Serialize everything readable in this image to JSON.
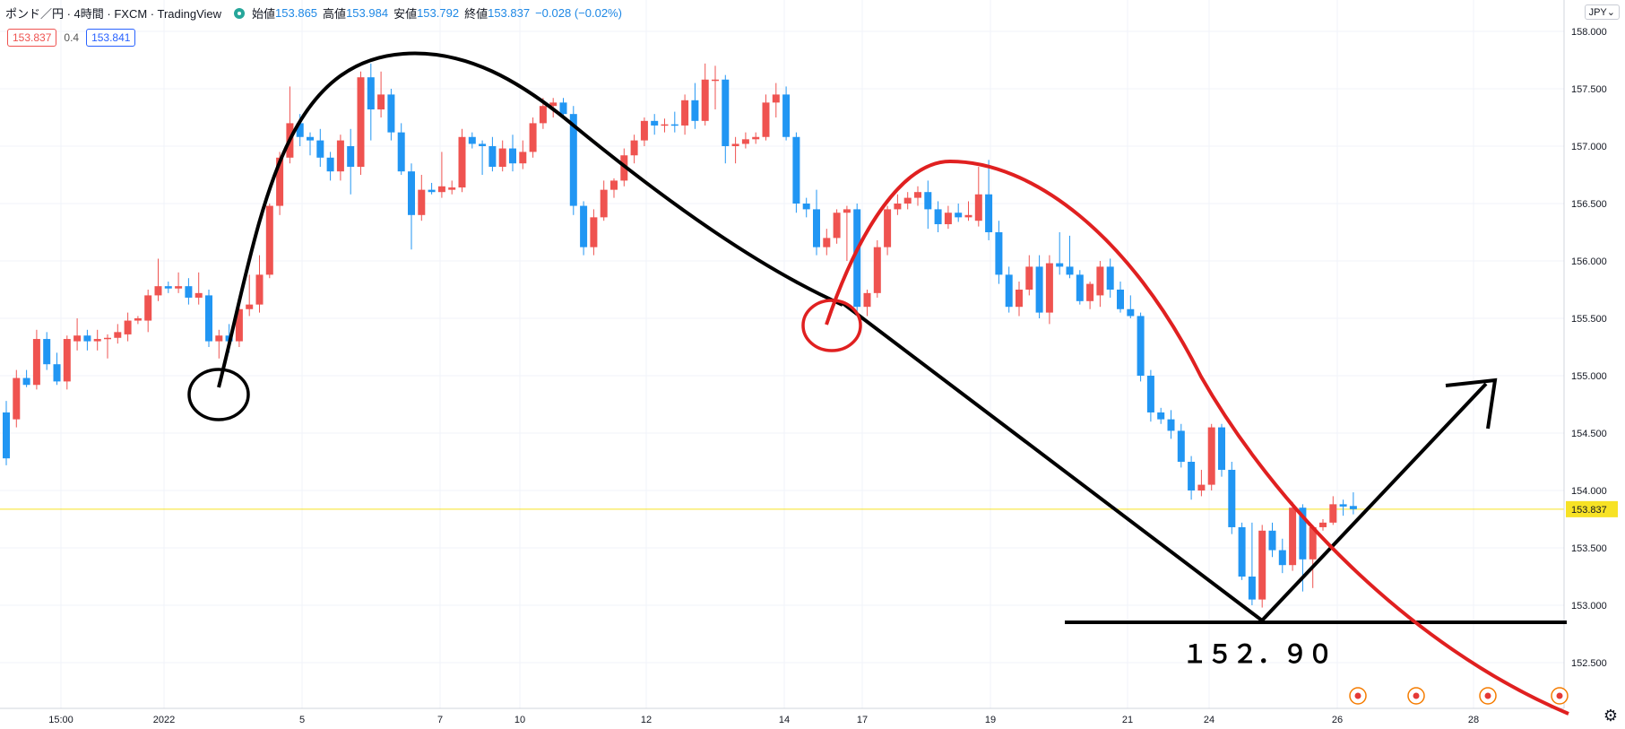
{
  "header": {
    "symbol": "ポンド／円 · 4時間 · FXCM · TradingView",
    "open_label": "始値",
    "open": "153.865",
    "high_label": "高値",
    "high": "153.984",
    "low_label": "安値",
    "low": "153.792",
    "close_label": "終値",
    "close": "153.837",
    "change": "−0.028 (−0.02%)"
  },
  "trade": {
    "sell": "153.837",
    "spread": "0.4",
    "buy": "153.841"
  },
  "currency_button": "JPY",
  "colors": {
    "up": "#ef5350",
    "down": "#2196f3",
    "last_price_bg": "#f7e225",
    "annotation_black": "#000000",
    "annotation_red": "#e02020"
  },
  "chart_data": {
    "type": "candlestick",
    "timeframe": "4時間",
    "y_axis": {
      "ticks": [
        "158.000",
        "157.500",
        "157.000",
        "156.500",
        "156.000",
        "155.500",
        "155.000",
        "154.500",
        "154.000",
        "153.500",
        "153.000",
        "152.500"
      ],
      "range": [
        152.2,
        158.1
      ]
    },
    "x_axis": {
      "ticks": [
        "15:00",
        "2022",
        "5",
        "7",
        "10",
        "12",
        "14",
        "17",
        "19",
        "21",
        "24",
        "26",
        "28"
      ]
    },
    "last_price": "153.837",
    "annotation_text": "１５２．９０",
    "candles": [
      [
        154.68,
        154.78,
        154.22,
        154.28
      ],
      [
        154.62,
        155.05,
        154.55,
        154.98
      ],
      [
        154.98,
        155.05,
        154.9,
        154.92
      ],
      [
        154.92,
        155.4,
        154.88,
        155.32
      ],
      [
        155.32,
        155.38,
        155.05,
        155.1
      ],
      [
        155.1,
        155.2,
        154.92,
        154.95
      ],
      [
        154.95,
        155.35,
        154.88,
        155.32
      ],
      [
        155.3,
        155.5,
        155.22,
        155.35
      ],
      [
        155.35,
        155.4,
        155.22,
        155.3
      ],
      [
        155.3,
        155.4,
        155.22,
        155.32
      ],
      [
        155.32,
        155.36,
        155.15,
        155.33
      ],
      [
        155.33,
        155.45,
        155.28,
        155.38
      ],
      [
        155.36,
        155.55,
        155.3,
        155.48
      ],
      [
        155.48,
        155.52,
        155.45,
        155.5
      ],
      [
        155.48,
        155.75,
        155.38,
        155.7
      ],
      [
        155.7,
        156.02,
        155.65,
        155.78
      ],
      [
        155.78,
        155.82,
        155.72,
        155.76
      ],
      [
        155.76,
        155.9,
        155.72,
        155.78
      ],
      [
        155.78,
        155.85,
        155.62,
        155.68
      ],
      [
        155.68,
        155.9,
        155.62,
        155.72
      ],
      [
        155.7,
        155.75,
        155.25,
        155.3
      ],
      [
        155.3,
        155.4,
        155.15,
        155.35
      ],
      [
        155.35,
        155.45,
        155.2,
        155.3
      ],
      [
        155.3,
        155.6,
        155.25,
        155.58
      ],
      [
        155.58,
        155.88,
        155.52,
        155.62
      ],
      [
        155.62,
        156.05,
        155.55,
        155.88
      ],
      [
        155.88,
        156.5,
        155.85,
        156.48
      ],
      [
        156.48,
        156.95,
        156.4,
        156.9
      ],
      [
        156.9,
        157.52,
        156.85,
        157.2
      ],
      [
        157.2,
        157.28,
        157.0,
        157.08
      ],
      [
        157.08,
        157.12,
        156.92,
        157.05
      ],
      [
        157.05,
        157.15,
        156.82,
        156.9
      ],
      [
        156.9,
        156.95,
        156.7,
        156.78
      ],
      [
        156.78,
        157.1,
        156.7,
        157.05
      ],
      [
        157.0,
        157.15,
        156.58,
        156.82
      ],
      [
        156.82,
        157.65,
        156.75,
        157.6
      ],
      [
        157.6,
        157.72,
        157.05,
        157.32
      ],
      [
        157.32,
        157.65,
        157.25,
        157.45
      ],
      [
        157.45,
        157.5,
        157.05,
        157.12
      ],
      [
        157.12,
        157.2,
        156.75,
        156.78
      ],
      [
        156.78,
        156.85,
        156.1,
        156.4
      ],
      [
        156.4,
        156.75,
        156.35,
        156.62
      ],
      [
        156.62,
        156.68,
        156.58,
        156.6
      ],
      [
        156.6,
        156.95,
        156.55,
        156.65
      ],
      [
        156.62,
        156.7,
        156.58,
        156.64
      ],
      [
        156.64,
        157.15,
        156.6,
        157.08
      ],
      [
        157.08,
        157.12,
        156.98,
        157.02
      ],
      [
        157.02,
        157.05,
        156.75,
        157.0
      ],
      [
        157.0,
        157.08,
        156.78,
        156.82
      ],
      [
        156.82,
        157.05,
        156.78,
        156.98
      ],
      [
        156.98,
        157.1,
        156.78,
        156.85
      ],
      [
        156.85,
        157.05,
        156.8,
        156.95
      ],
      [
        156.95,
        157.25,
        156.9,
        157.2
      ],
      [
        157.2,
        157.42,
        157.15,
        157.35
      ],
      [
        157.35,
        157.42,
        157.25,
        157.38
      ],
      [
        157.38,
        157.42,
        157.25,
        157.28
      ],
      [
        157.28,
        157.35,
        156.4,
        156.48
      ],
      [
        156.48,
        156.52,
        156.05,
        156.12
      ],
      [
        156.12,
        156.45,
        156.05,
        156.38
      ],
      [
        156.38,
        156.7,
        156.35,
        156.62
      ],
      [
        156.62,
        156.72,
        156.55,
        156.7
      ],
      [
        156.7,
        156.98,
        156.65,
        156.92
      ],
      [
        156.92,
        157.1,
        156.85,
        157.05
      ],
      [
        157.05,
        157.25,
        157.0,
        157.22
      ],
      [
        157.22,
        157.28,
        157.1,
        157.18
      ],
      [
        157.18,
        157.24,
        157.12,
        157.19
      ],
      [
        157.19,
        157.3,
        157.12,
        157.18
      ],
      [
        157.18,
        157.45,
        157.1,
        157.4
      ],
      [
        157.4,
        157.55,
        157.15,
        157.22
      ],
      [
        157.22,
        157.72,
        157.18,
        157.58
      ],
      [
        157.58,
        157.7,
        157.32,
        157.58
      ],
      [
        157.58,
        157.62,
        156.85,
        157.0
      ],
      [
        157.0,
        157.08,
        156.85,
        157.02
      ],
      [
        157.02,
        157.12,
        156.98,
        157.06
      ],
      [
        157.06,
        157.12,
        157.02,
        157.08
      ],
      [
        157.08,
        157.45,
        157.05,
        157.38
      ],
      [
        157.38,
        157.55,
        157.25,
        157.45
      ],
      [
        157.45,
        157.52,
        157.05,
        157.08
      ],
      [
        157.08,
        157.12,
        156.42,
        156.5
      ],
      [
        156.5,
        156.55,
        156.38,
        156.45
      ],
      [
        156.45,
        156.62,
        156.05,
        156.12
      ],
      [
        156.12,
        156.28,
        156.05,
        156.2
      ],
      [
        156.2,
        156.45,
        156.15,
        156.42
      ],
      [
        156.42,
        156.48,
        156.0,
        156.45
      ],
      [
        156.45,
        156.5,
        155.52,
        155.6
      ],
      [
        155.6,
        155.75,
        155.52,
        155.72
      ],
      [
        155.72,
        156.18,
        155.68,
        156.12
      ],
      [
        156.12,
        156.48,
        156.05,
        156.45
      ],
      [
        156.45,
        156.58,
        156.4,
        156.5
      ],
      [
        156.5,
        156.6,
        156.45,
        156.55
      ],
      [
        156.55,
        156.65,
        156.48,
        156.6
      ],
      [
        156.6,
        156.7,
        156.28,
        156.45
      ],
      [
        156.45,
        156.52,
        156.25,
        156.32
      ],
      [
        156.32,
        156.48,
        156.28,
        156.42
      ],
      [
        156.42,
        156.5,
        156.34,
        156.38
      ],
      [
        156.38,
        156.52,
        156.35,
        156.4
      ],
      [
        156.35,
        156.82,
        156.3,
        156.58
      ],
      [
        156.58,
        156.88,
        156.18,
        156.25
      ],
      [
        156.25,
        156.35,
        155.8,
        155.88
      ],
      [
        155.88,
        155.95,
        155.55,
        155.6
      ],
      [
        155.6,
        155.82,
        155.52,
        155.75
      ],
      [
        155.75,
        156.05,
        155.7,
        155.95
      ],
      [
        155.95,
        156.05,
        155.5,
        155.55
      ],
      [
        155.55,
        156.05,
        155.45,
        155.98
      ],
      [
        155.98,
        156.25,
        155.88,
        155.95
      ],
      [
        155.95,
        156.22,
        155.85,
        155.88
      ],
      [
        155.88,
        155.92,
        155.62,
        155.65
      ],
      [
        155.65,
        155.82,
        155.58,
        155.8
      ],
      [
        155.7,
        156.0,
        155.6,
        155.95
      ],
      [
        155.95,
        156.02,
        155.68,
        155.75
      ],
      [
        155.75,
        155.82,
        155.55,
        155.58
      ],
      [
        155.58,
        155.7,
        155.5,
        155.52
      ],
      [
        155.52,
        155.55,
        154.95,
        155.0
      ],
      [
        155.0,
        155.05,
        154.6,
        154.68
      ],
      [
        154.68,
        154.72,
        154.58,
        154.62
      ],
      [
        154.62,
        154.7,
        154.45,
        154.52
      ],
      [
        154.52,
        154.58,
        154.2,
        154.25
      ],
      [
        154.25,
        154.3,
        153.92,
        154.0
      ],
      [
        154.0,
        154.18,
        153.95,
        154.05
      ],
      [
        154.05,
        154.58,
        154.0,
        154.55
      ],
      [
        154.55,
        154.58,
        154.12,
        154.18
      ],
      [
        154.18,
        154.25,
        153.62,
        153.68
      ],
      [
        153.68,
        153.72,
        153.22,
        153.25
      ],
      [
        153.25,
        153.72,
        153.0,
        153.05
      ],
      [
        153.05,
        153.7,
        152.98,
        153.65
      ],
      [
        153.65,
        153.72,
        153.42,
        153.48
      ],
      [
        153.48,
        153.58,
        153.28,
        153.35
      ],
      [
        153.35,
        153.9,
        153.3,
        153.85
      ],
      [
        153.85,
        153.88,
        153.12,
        153.4
      ],
      [
        153.4,
        153.7,
        153.15,
        153.68
      ],
      [
        153.68,
        153.75,
        153.65,
        153.72
      ],
      [
        153.72,
        153.95,
        153.7,
        153.88
      ],
      [
        153.88,
        153.92,
        153.78,
        153.86
      ],
      [
        153.865,
        153.984,
        153.792,
        153.837
      ]
    ]
  }
}
